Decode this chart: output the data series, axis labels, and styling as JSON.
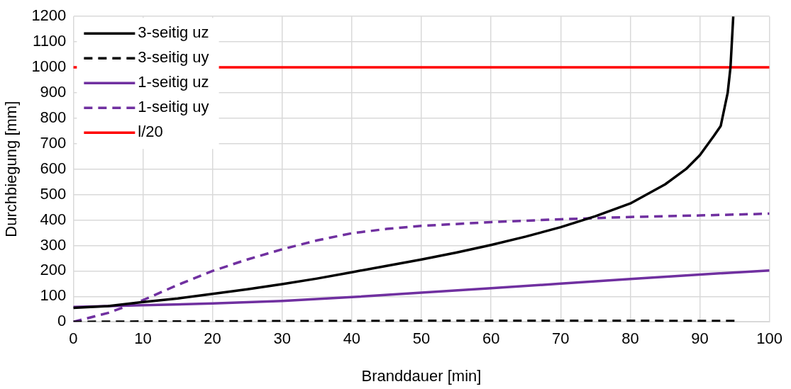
{
  "chart_data": {
    "type": "line",
    "xlabel": "Branddauer [min]",
    "ylabel": "Durchbiegung [mm]",
    "xlim": [
      0,
      100
    ],
    "xticks": [
      0,
      10,
      20,
      30,
      40,
      50,
      60,
      70,
      80,
      90,
      100
    ],
    "ylim": [
      0,
      1200
    ],
    "yticks": [
      0,
      100,
      200,
      300,
      400,
      500,
      600,
      700,
      800,
      900,
      1000,
      1100,
      1200
    ],
    "grid": true,
    "legend": "top left",
    "marker": "none",
    "series": [
      {
        "name": "3-seitig uz",
        "color": "#000000",
        "line_style": "solid",
        "x": [
          0,
          5,
          10,
          15,
          20,
          25,
          30,
          35,
          40,
          45,
          50,
          55,
          60,
          65,
          70,
          75,
          80,
          85,
          88,
          90,
          92,
          93,
          94,
          94.4,
          94.8
        ],
        "values": [
          55,
          62,
          78,
          92,
          110,
          128,
          148,
          170,
          195,
          220,
          245,
          272,
          302,
          335,
          372,
          415,
          465,
          540,
          600,
          655,
          730,
          770,
          900,
          1000,
          1200
        ]
      },
      {
        "name": "3-seitig uy",
        "color": "#000000",
        "line_style": "dashed",
        "x": [
          0,
          20,
          50,
          80,
          95
        ],
        "values": [
          0,
          2,
          4,
          4,
          3
        ]
      },
      {
        "name": "1-seitig uz",
        "color": "#7030a0",
        "line_style": "solid",
        "x": [
          0,
          10,
          20,
          30,
          40,
          50,
          60,
          70,
          80,
          90,
          100
        ],
        "values": [
          58,
          65,
          72,
          82,
          97,
          115,
          132,
          150,
          168,
          186,
          202
        ]
      },
      {
        "name": "1-seitig uy",
        "color": "#7030a0",
        "line_style": "dashed",
        "x": [
          0,
          5,
          10,
          15,
          20,
          25,
          30,
          35,
          40,
          45,
          50,
          60,
          70,
          80,
          90,
          100
        ],
        "values": [
          0,
          35,
          85,
          145,
          200,
          245,
          285,
          320,
          348,
          365,
          377,
          392,
          403,
          412,
          418,
          425
        ]
      },
      {
        "name": "l/20",
        "color": "#ff0000",
        "line_style": "solid",
        "x": [
          0,
          100
        ],
        "values": [
          1000,
          1000
        ]
      }
    ]
  }
}
